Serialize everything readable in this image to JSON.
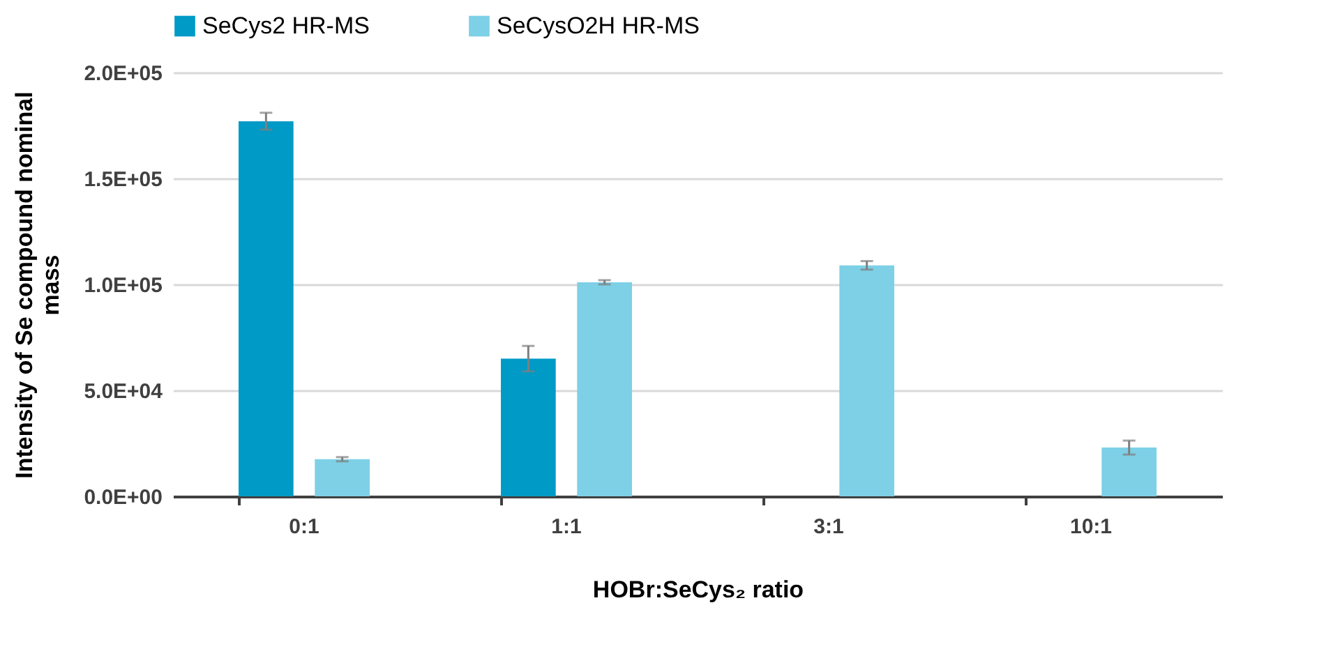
{
  "chart_data": {
    "type": "bar",
    "xlabel": "HOBr:SeCys₂ ratio",
    "ylabel": "Intensity of Se compound nominal mass",
    "categories": [
      "0:1",
      "1:1",
      "3:1",
      "10:1"
    ],
    "series": [
      {
        "name": "SeCys2 HR-MS",
        "color": "#009ac7",
        "values": [
          177000,
          65000,
          null,
          null
        ],
        "errors": [
          4000,
          6000,
          null,
          null
        ]
      },
      {
        "name": "SeCysO2H HR-MS",
        "color": "#7dd0e6",
        "values": [
          17500,
          101000,
          109000,
          23000
        ],
        "errors": [
          1000,
          1000,
          2000,
          3300
        ]
      }
    ],
    "ylim": [
      0,
      200000
    ],
    "yticks": [
      {
        "value": 0,
        "label": "0.0E+00"
      },
      {
        "value": 50000,
        "label": "5.0E+04"
      },
      {
        "value": 100000,
        "label": "1.0E+05"
      },
      {
        "value": 150000,
        "label": "1.5E+05"
      },
      {
        "value": 200000,
        "label": "2.0E+05"
      }
    ],
    "grid": "y",
    "legend": "top"
  }
}
